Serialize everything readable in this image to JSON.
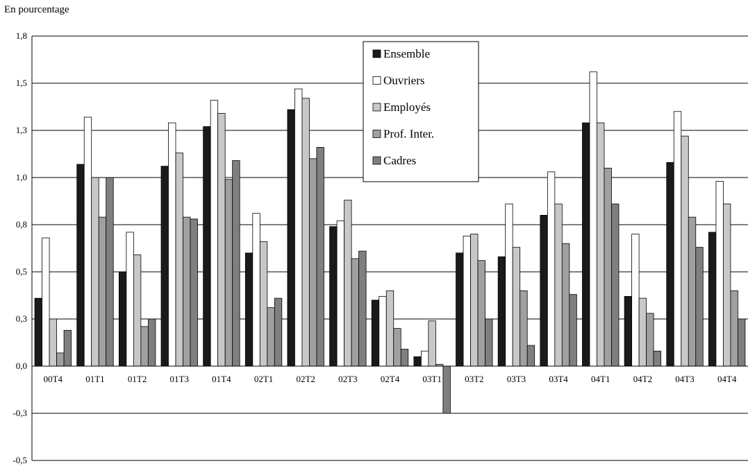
{
  "chart_data": {
    "type": "bar",
    "unit_label": "En pourcentage",
    "title": "",
    "xlabel": "",
    "ylabel": "",
    "ylim": [
      -0.5,
      1.75
    ],
    "yticks": [
      {
        "value": 1.75,
        "label": "1,8"
      },
      {
        "value": 1.5,
        "label": "1,5"
      },
      {
        "value": 1.25,
        "label": "1,3"
      },
      {
        "value": 1.0,
        "label": "1,0"
      },
      {
        "value": 0.75,
        "label": "0,8"
      },
      {
        "value": 0.5,
        "label": "0,5"
      },
      {
        "value": 0.25,
        "label": "0,3"
      },
      {
        "value": 0.0,
        "label": "0,0"
      },
      {
        "value": -0.25,
        "label": "-0,3"
      },
      {
        "value": -0.5,
        "label": "-0,5"
      }
    ],
    "grid": true,
    "legend_position": "top-center",
    "categories": [
      "00T4",
      "01T1",
      "01T2",
      "01T3",
      "01T4",
      "02T1",
      "02T2",
      "02T3",
      "02T4",
      "03T1",
      "03T2",
      "03T3",
      "03T4",
      "04T1",
      "04T2",
      "04T3",
      "04T4"
    ],
    "series": [
      {
        "name": "Ensemble",
        "color": "#1a1a1a",
        "values": [
          0.36,
          1.07,
          0.5,
          1.06,
          1.27,
          0.6,
          1.36,
          0.74,
          0.35,
          0.05,
          0.6,
          0.58,
          0.8,
          1.29,
          0.37,
          1.08,
          0.71
        ]
      },
      {
        "name": "Ouvriers",
        "color": "#ffffff",
        "values": [
          0.68,
          1.32,
          0.71,
          1.29,
          1.41,
          0.81,
          1.47,
          0.77,
          0.37,
          0.08,
          0.69,
          0.86,
          1.03,
          1.56,
          0.7,
          1.35,
          0.98
        ]
      },
      {
        "name": "Employés",
        "color": "#c8c8c8",
        "values": [
          0.25,
          1.0,
          0.59,
          1.13,
          1.34,
          0.66,
          1.42,
          0.88,
          0.4,
          0.24,
          0.7,
          0.63,
          0.86,
          1.29,
          0.36,
          1.22,
          0.86
        ]
      },
      {
        "name": "Prof. Inter.",
        "color": "#a0a0a0",
        "values": [
          0.07,
          0.79,
          0.21,
          0.79,
          0.99,
          0.31,
          1.1,
          0.57,
          0.2,
          0.01,
          0.56,
          0.4,
          0.65,
          1.05,
          0.28,
          0.79,
          0.4
        ]
      },
      {
        "name": "Cadres",
        "color": "#7f7f7f",
        "values": [
          0.19,
          1.0,
          0.25,
          0.78,
          1.09,
          0.36,
          1.16,
          0.61,
          0.09,
          -0.25,
          0.25,
          0.11,
          0.38,
          0.86,
          0.08,
          0.63,
          0.25
        ]
      }
    ]
  }
}
